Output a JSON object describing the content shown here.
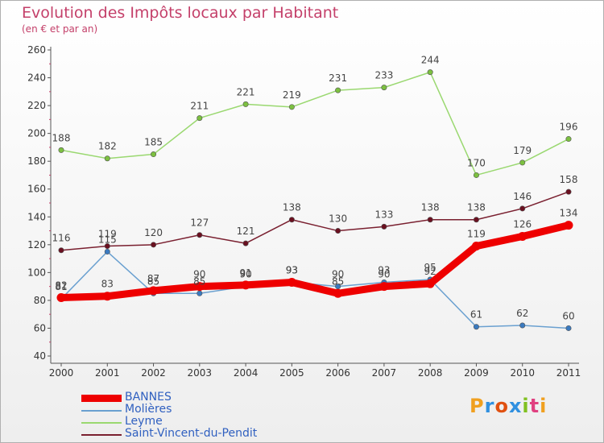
{
  "header": {
    "title": "Evolution des Impôts locaux par Habitant",
    "subtitle": "(en € et par an)"
  },
  "logo": {
    "letters": [
      "P",
      "r",
      "o",
      "x",
      "i",
      "t",
      "i"
    ],
    "colors": [
      "#f0a020",
      "#3090e0",
      "#e05010",
      "#3090e0",
      "#80c020",
      "#e04080",
      "#f0a020"
    ]
  },
  "chart_data": {
    "type": "line",
    "title": "Evolution des Impôts locaux par Habitant",
    "subtitle": "(en € et par an)",
    "xlabel": "",
    "ylabel": "",
    "x": [
      "2000",
      "2001",
      "2002",
      "2003",
      "2004",
      "2005",
      "2006",
      "2007",
      "2008",
      "2009",
      "2010",
      "2011"
    ],
    "ylim": [
      40,
      260
    ],
    "yticks": [
      "40",
      "60",
      "80",
      "100",
      "120",
      "140",
      "160",
      "180",
      "200",
      "220",
      "240",
      "260"
    ],
    "grid": false,
    "legend_position": "bottom-left",
    "series": [
      {
        "name": "Saint-Vincent-du-Pendit",
        "color": "#7a2030",
        "dot": "#6a1020",
        "values": [
          116,
          119,
          120,
          127,
          121,
          138,
          130,
          133,
          138,
          138,
          146,
          158
        ],
        "labels": [
          "116",
          "119",
          "120",
          "127",
          "121",
          "138",
          "130",
          "133",
          "138",
          "138",
          "146",
          "158"
        ]
      },
      {
        "name": "Leyme",
        "color": "#9ad870",
        "dot": "#7cc040",
        "values": [
          188,
          182,
          185,
          211,
          221,
          219,
          231,
          233,
          244,
          170,
          179,
          196
        ],
        "labels": [
          "188",
          "182",
          "185",
          "211",
          "221",
          "219",
          "231",
          "233",
          "244",
          "170",
          "179",
          "196"
        ]
      },
      {
        "name": "Molières",
        "color": "#6aa0d0",
        "dot": "#3a7ac0",
        "values": [
          81,
          115,
          85,
          85,
          90,
          93,
          90,
          93,
          95,
          61,
          62,
          60
        ],
        "labels": [
          "81",
          "115",
          "85",
          "85",
          "90",
          "93",
          "90",
          "93",
          "95",
          "61",
          "62",
          "60"
        ]
      },
      {
        "name": "BANNES",
        "color": "#ee0000",
        "dot": "#ee0000",
        "values": [
          82,
          83,
          87,
          90,
          91,
          93,
          85,
          90,
          92,
          119,
          126,
          134
        ],
        "labels": [
          "82",
          "83",
          "87",
          "90",
          "91",
          "93",
          "85",
          "90",
          "92",
          "119",
          "126",
          "134"
        ]
      }
    ],
    "legend": [
      {
        "name": "BANNES",
        "color": "#ee0000"
      },
      {
        "name": "Molières",
        "color": "#6aa0d0"
      },
      {
        "name": "Leyme",
        "color": "#9ad870"
      },
      {
        "name": "Saint-Vincent-du-Pendit",
        "color": "#7a2030"
      }
    ]
  }
}
